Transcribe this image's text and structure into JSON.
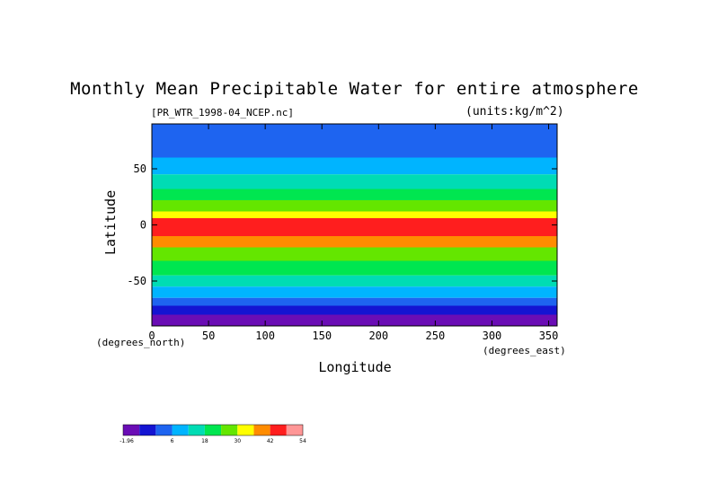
{
  "chart_data": {
    "type": "heatmap",
    "title": "Monthly Mean Precipitable Water for entire atmosphere",
    "subtitle_left": "[PR_WTR_1998-04_NCEP.nc]",
    "subtitle_right": "(units:kg/m^2)",
    "xlabel": "Longitude",
    "ylabel": "Latitude",
    "x_units": "(degrees_east)",
    "y_units": "(degrees_north)",
    "xlim": [
      0,
      357.5
    ],
    "ylim": [
      -90,
      90
    ],
    "x_ticks": [
      0,
      50,
      100,
      150,
      200,
      250,
      300,
      350
    ],
    "y_ticks": [
      50,
      0,
      -50
    ],
    "colorbar": {
      "tick_labels": [
        "-1.96",
        "6",
        "18",
        "30",
        "42",
        "54"
      ],
      "colors": [
        "#6a0db5",
        "#1414d2",
        "#1e64f0",
        "#00b4ff",
        "#00dcb4",
        "#00e650",
        "#64e600",
        "#ffff00",
        "#ff8c00",
        "#ff1e1e",
        "#ff9696"
      ]
    },
    "latitude_profile": [
      {
        "lat": 90,
        "level": 2
      },
      {
        "lat": 72,
        "level": 2
      },
      {
        "lat": 60,
        "level": 3
      },
      {
        "lat": 45,
        "level": 4
      },
      {
        "lat": 32,
        "level": 5
      },
      {
        "lat": 22,
        "level": 6
      },
      {
        "lat": 12,
        "level": 7
      },
      {
        "lat": 6,
        "level": 9
      },
      {
        "lat": 0,
        "level": 9
      },
      {
        "lat": -10,
        "level": 8
      },
      {
        "lat": -20,
        "level": 6
      },
      {
        "lat": -32,
        "level": 5
      },
      {
        "lat": -45,
        "level": 4
      },
      {
        "lat": -55,
        "level": 3
      },
      {
        "lat": -65,
        "level": 2
      },
      {
        "lat": -72,
        "level": 1
      },
      {
        "lat": -80,
        "level": 0
      },
      {
        "lat": -90,
        "level": 0
      }
    ]
  }
}
